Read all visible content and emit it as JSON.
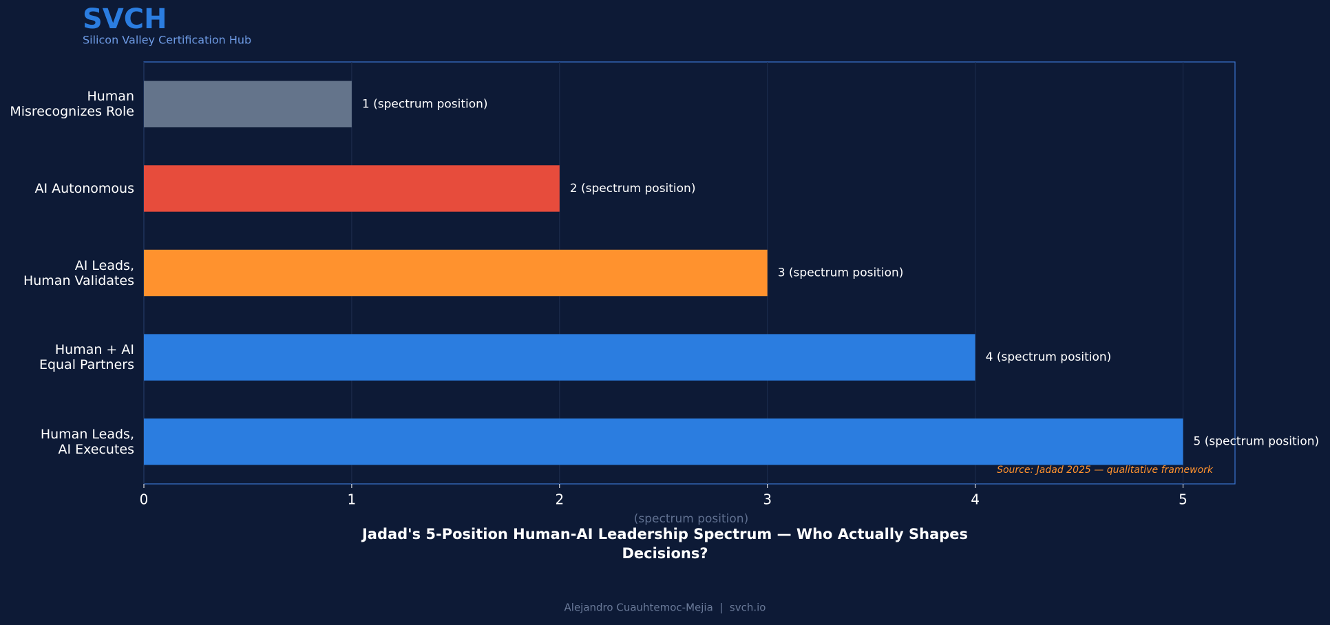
{
  "header": {
    "brand": "SVCH",
    "tagline": "Silicon Valley Certification Hub"
  },
  "chart_data": {
    "type": "barh",
    "title": "Jadad's 5-Position Human-AI Leadership Spectrum — Who Actually Shapes Decisions?",
    "x_label": "(spectrum position)",
    "categories": [
      "Human\nMisrecognizes Role",
      "AI Autonomous",
      "AI Leads,\nHuman Validates",
      "Human + AI\nEqual Partners",
      "Human Leads,\nAI Executes"
    ],
    "values": [
      1,
      2,
      3,
      4,
      5
    ],
    "value_labels": [
      "1 (spectrum position)",
      "2 (spectrum position)",
      "3 (spectrum position)",
      "4 (spectrum position)",
      "5 (spectrum position)"
    ],
    "colors": [
      "#64748b",
      "#e74c3c",
      "#ff922e",
      "#2b7de0",
      "#2b7de0"
    ],
    "xlim": [
      0,
      5.25
    ],
    "xticks": [
      0,
      1,
      2,
      3,
      4,
      5
    ],
    "grid": true,
    "annotation": "Source: Jadad 2025 — qualitative framework"
  },
  "footer": "Alejandro Cuauhtemoc-Mejia  |  svch.io"
}
